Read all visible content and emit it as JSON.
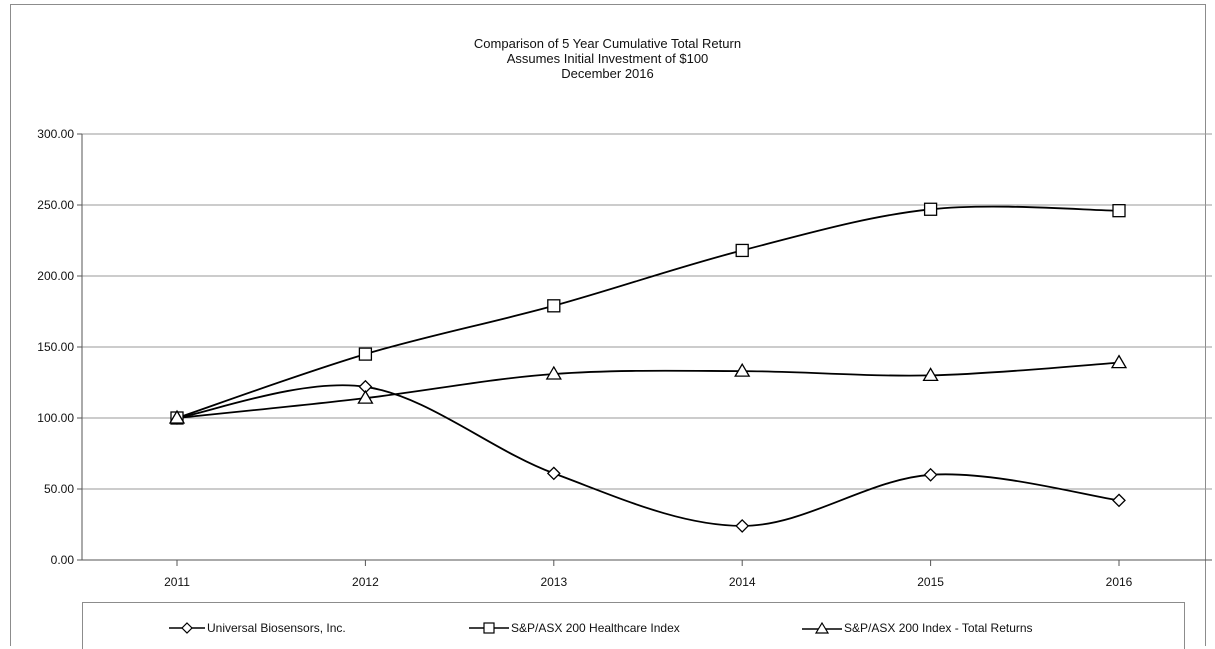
{
  "chart_data": {
    "type": "line",
    "title": "Comparison of 5 Year Cumulative Total Return",
    "subtitle": "Assumes Initial Investment of $100",
    "subtitle2": "December 2016",
    "x": [
      "2011",
      "2012",
      "2013",
      "2014",
      "2015",
      "2016"
    ],
    "ylim": [
      0,
      300
    ],
    "yticks": [
      "0.00",
      "50.00",
      "100.00",
      "150.00",
      "200.00",
      "250.00",
      "300.00"
    ],
    "grid": true,
    "legend_position": "bottom",
    "series": [
      {
        "name": "Universal Biosensors, Inc.",
        "marker": "diamond",
        "values": [
          100,
          122,
          61,
          24,
          60,
          42
        ]
      },
      {
        "name": "S&P/ASX 200 Healthcare Index",
        "marker": "square",
        "values": [
          100,
          145,
          179,
          218,
          247,
          246
        ]
      },
      {
        "name": "S&P/ASX  200 Index - Total Returns",
        "marker": "triangle",
        "values": [
          100,
          114,
          131,
          133,
          130,
          139
        ]
      }
    ],
    "colors": {
      "line": "#000000",
      "grid": "#9a9a9a",
      "axis": "#555555"
    }
  }
}
